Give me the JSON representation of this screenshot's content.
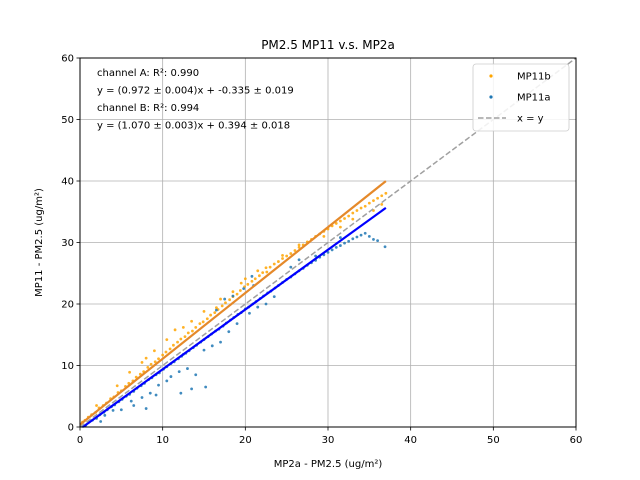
{
  "chart_data": {
    "type": "scatter",
    "title": "PM2.5 MP11 v.s. MP2a",
    "xlabel": "MP2a - PM2.5 (ug/m²)",
    "ylabel": "MP11 - PM2.5 (ug/m²)",
    "xlim": [
      0,
      60
    ],
    "ylim": [
      0,
      60
    ],
    "xticks": [
      0,
      10,
      20,
      30,
      40,
      50,
      60
    ],
    "yticks": [
      0,
      10,
      20,
      30,
      40,
      50,
      60
    ],
    "grid": true,
    "legend_position": "top-right",
    "annotations": [
      "channel A: R²: 0.990",
      "y = (0.972 ± 0.004)x + -0.335 ± 0.019",
      "channel B: R²: 0.994",
      "y = (1.070 ± 0.003)x + 0.394 ± 0.018"
    ],
    "series": [
      {
        "name": "MP11b",
        "kind": "scatter",
        "color": "#ffa500",
        "points": [
          [
            0.3,
            0.8
          ],
          [
            0.6,
            1.1
          ],
          [
            1.0,
            1.6
          ],
          [
            1.4,
            2.0
          ],
          [
            1.9,
            2.4
          ],
          [
            2.3,
            3.1
          ],
          [
            2.8,
            3.5
          ],
          [
            3.2,
            3.9
          ],
          [
            3.7,
            4.6
          ],
          [
            4.1,
            4.9
          ],
          [
            4.6,
            5.6
          ],
          [
            5.0,
            5.9
          ],
          [
            5.5,
            6.6
          ],
          [
            5.9,
            7.1
          ],
          [
            6.4,
            7.5
          ],
          [
            6.8,
            8.1
          ],
          [
            7.3,
            8.6
          ],
          [
            7.7,
            9.0
          ],
          [
            8.2,
            9.7
          ],
          [
            8.6,
            10.2
          ],
          [
            9.1,
            10.6
          ],
          [
            9.5,
            11.1
          ],
          [
            10.0,
            11.7
          ],
          [
            10.4,
            12.2
          ],
          [
            10.9,
            12.7
          ],
          [
            11.3,
            13.3
          ],
          [
            11.8,
            13.8
          ],
          [
            12.2,
            14.3
          ],
          [
            12.7,
            14.7
          ],
          [
            13.1,
            15.3
          ],
          [
            13.6,
            15.6
          ],
          [
            14.0,
            16.2
          ],
          [
            14.5,
            16.8
          ],
          [
            14.9,
            17.1
          ],
          [
            15.4,
            17.6
          ],
          [
            15.8,
            18.2
          ],
          [
            16.3,
            18.6
          ],
          [
            16.7,
            19.1
          ],
          [
            17.2,
            19.7
          ],
          [
            17.6,
            20.2
          ],
          [
            18.1,
            20.7
          ],
          [
            18.5,
            21.2
          ],
          [
            19.0,
            21.6
          ],
          [
            19.4,
            22.2
          ],
          [
            19.9,
            22.8
          ],
          [
            20.3,
            23.2
          ],
          [
            20.8,
            23.7
          ],
          [
            21.2,
            24.1
          ],
          [
            21.7,
            24.6
          ],
          [
            22.1,
            25.1
          ],
          [
            22.6,
            25.2
          ],
          [
            23.0,
            26.0
          ],
          [
            23.5,
            26.5
          ],
          [
            24.0,
            26.9
          ],
          [
            24.5,
            27.4
          ],
          [
            25.0,
            27.8
          ],
          [
            25.5,
            28.2
          ],
          [
            26.0,
            28.7
          ],
          [
            26.5,
            29.2
          ],
          [
            27.0,
            29.6
          ],
          [
            27.5,
            30.1
          ],
          [
            28.0,
            30.5
          ],
          [
            28.5,
            31.0
          ],
          [
            29.0,
            31.4
          ],
          [
            29.5,
            31.8
          ],
          [
            30.0,
            32.2
          ],
          [
            30.5,
            32.7
          ],
          [
            31.0,
            33.1
          ],
          [
            31.5,
            33.5
          ],
          [
            32.0,
            33.9
          ],
          [
            32.5,
            34.3
          ],
          [
            33.0,
            34.8
          ],
          [
            33.5,
            35.2
          ],
          [
            34.0,
            35.6
          ],
          [
            34.5,
            35.9
          ],
          [
            35.0,
            36.4
          ],
          [
            35.5,
            36.8
          ],
          [
            36.0,
            37.2
          ],
          [
            36.5,
            37.6
          ],
          [
            37.0,
            38.0
          ],
          [
            7.5,
            10.5
          ],
          [
            9.0,
            12.4
          ],
          [
            10.5,
            14.2
          ],
          [
            11.5,
            15.8
          ],
          [
            12.5,
            16.2
          ],
          [
            13.5,
            17.2
          ],
          [
            15.0,
            18.8
          ],
          [
            16.5,
            19.4
          ],
          [
            18.5,
            22.0
          ],
          [
            20.0,
            24.1
          ],
          [
            21.5,
            25.4
          ],
          [
            22.5,
            25.9
          ],
          [
            6.0,
            8.9
          ],
          [
            8.0,
            11.2
          ],
          [
            4.5,
            6.7
          ],
          [
            2.0,
            3.5
          ],
          [
            19.5,
            23.4
          ],
          [
            17.0,
            20.8
          ],
          [
            24.5,
            27.9
          ],
          [
            26.5,
            29.6
          ],
          [
            29.5,
            31.0
          ],
          [
            31.5,
            32.5
          ],
          [
            33.0,
            33.8
          ],
          [
            35.5,
            35.2
          ],
          [
            36.5,
            36.2
          ]
        ]
      },
      {
        "name": "MP11a",
        "kind": "scatter",
        "color": "#1f77b4",
        "points": [
          [
            0.3,
            0.1
          ],
          [
            0.7,
            0.3
          ],
          [
            1.1,
            0.8
          ],
          [
            1.5,
            1.1
          ],
          [
            2.0,
            1.4
          ],
          [
            2.4,
            2.0
          ],
          [
            2.9,
            2.4
          ],
          [
            3.3,
            2.8
          ],
          [
            3.8,
            3.3
          ],
          [
            4.2,
            3.6
          ],
          [
            4.7,
            4.1
          ],
          [
            5.1,
            4.5
          ],
          [
            5.6,
            5.0
          ],
          [
            6.0,
            5.3
          ],
          [
            6.5,
            5.8
          ],
          [
            6.9,
            6.3
          ],
          [
            7.4,
            6.7
          ],
          [
            7.8,
            7.1
          ],
          [
            8.3,
            7.7
          ],
          [
            8.7,
            8.0
          ],
          [
            9.2,
            8.5
          ],
          [
            9.6,
            8.8
          ],
          [
            10.1,
            9.4
          ],
          [
            10.5,
            9.8
          ],
          [
            11.0,
            10.3
          ],
          [
            11.4,
            10.6
          ],
          [
            11.9,
            11.1
          ],
          [
            12.3,
            11.5
          ],
          [
            12.8,
            12.0
          ],
          [
            13.2,
            12.4
          ],
          [
            13.7,
            12.9
          ],
          [
            14.1,
            13.3
          ],
          [
            14.6,
            13.8
          ],
          [
            15.0,
            14.2
          ],
          [
            15.5,
            14.7
          ],
          [
            15.9,
            15.1
          ],
          [
            16.4,
            15.6
          ],
          [
            16.8,
            15.9
          ],
          [
            17.3,
            16.4
          ],
          [
            17.7,
            16.9
          ],
          [
            18.2,
            17.4
          ],
          [
            18.6,
            17.8
          ],
          [
            19.1,
            18.3
          ],
          [
            19.5,
            18.6
          ],
          [
            20.0,
            19.2
          ],
          [
            20.4,
            19.5
          ],
          [
            20.9,
            20.0
          ],
          [
            21.3,
            20.4
          ],
          [
            21.8,
            20.9
          ],
          [
            22.2,
            21.3
          ],
          [
            22.7,
            21.8
          ],
          [
            23.1,
            22.1
          ],
          [
            23.6,
            22.6
          ],
          [
            24.0,
            23.0
          ],
          [
            24.5,
            23.5
          ],
          [
            25.0,
            24.0
          ],
          [
            25.5,
            24.4
          ],
          [
            26.0,
            24.9
          ],
          [
            26.5,
            25.4
          ],
          [
            27.0,
            25.8
          ],
          [
            27.5,
            26.3
          ],
          [
            28.0,
            26.7
          ],
          [
            28.5,
            27.1
          ],
          [
            29.0,
            27.6
          ],
          [
            29.5,
            28.0
          ],
          [
            30.0,
            28.4
          ],
          [
            30.5,
            28.8
          ],
          [
            31.0,
            29.2
          ],
          [
            31.5,
            29.5
          ],
          [
            32.0,
            29.9
          ],
          [
            32.5,
            30.2
          ],
          [
            33.0,
            30.6
          ],
          [
            33.5,
            30.9
          ],
          [
            34.0,
            31.2
          ],
          [
            34.5,
            31.5
          ],
          [
            35.0,
            31.0
          ],
          [
            35.5,
            30.5
          ],
          [
            36.0,
            30.3
          ],
          [
            36.9,
            29.3
          ],
          [
            5.0,
            2.8
          ],
          [
            6.5,
            3.5
          ],
          [
            7.5,
            4.8
          ],
          [
            8.5,
            5.5
          ],
          [
            9.5,
            6.8
          ],
          [
            10.5,
            7.5
          ],
          [
            11.0,
            8.2
          ],
          [
            12.0,
            9.0
          ],
          [
            13.0,
            9.5
          ],
          [
            14.0,
            8.5
          ],
          [
            12.5,
            11.8
          ],
          [
            15.0,
            12.5
          ],
          [
            16.0,
            13.2
          ],
          [
            17.0,
            13.8
          ],
          [
            9.2,
            5.2
          ],
          [
            8.0,
            3.0
          ],
          [
            13.5,
            6.2
          ],
          [
            15.2,
            6.5
          ],
          [
            12.2,
            5.5
          ],
          [
            18.0,
            15.5
          ],
          [
            19.0,
            16.8
          ],
          [
            20.5,
            18.5
          ],
          [
            21.5,
            19.5
          ],
          [
            22.5,
            20.0
          ],
          [
            23.5,
            21.2
          ],
          [
            21.0,
            23.0
          ],
          [
            19.8,
            22.5
          ],
          [
            18.5,
            21.3
          ],
          [
            20.8,
            24.5
          ],
          [
            16.5,
            19.0
          ],
          [
            17.5,
            20.8
          ],
          [
            25.5,
            26.0
          ],
          [
            26.5,
            27.2
          ],
          [
            28.5,
            27.8
          ],
          [
            31.5,
            30.8
          ],
          [
            3.0,
            1.9
          ],
          [
            4.0,
            2.7
          ],
          [
            2.5,
            0.9
          ],
          [
            6.2,
            4.2
          ]
        ]
      },
      {
        "name": "fit channel B",
        "kind": "line",
        "color": "#e5892a",
        "x": [
          0,
          37
        ],
        "slope": 1.07,
        "intercept": 0.394
      },
      {
        "name": "fit channel A",
        "kind": "line",
        "color": "#0000ff",
        "x": [
          0,
          37
        ],
        "slope": 0.972,
        "intercept": -0.335
      },
      {
        "name": "x = y",
        "kind": "line",
        "color": "#a0a0a0",
        "dashed": true,
        "x": [
          0,
          60
        ],
        "slope": 1,
        "intercept": 0
      }
    ],
    "legend": [
      {
        "label": "MP11b",
        "color": "#ffa500",
        "marker": "dot"
      },
      {
        "label": "MP11a",
        "color": "#1f77b4",
        "marker": "dot"
      },
      {
        "label": "x = y",
        "color": "#a0a0a0",
        "marker": "dashed-line"
      }
    ]
  }
}
